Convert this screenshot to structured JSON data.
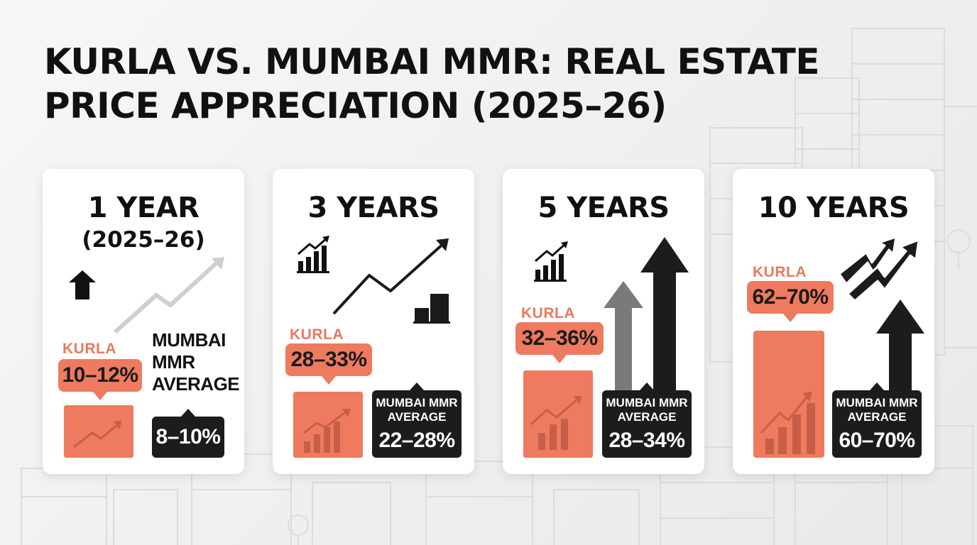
{
  "title": {
    "line1": "KURLA VS. MUMBAI MMR: REAL ESTATE",
    "line2": "PRICE APPRECIATION (2025–26)"
  },
  "cards": [
    {
      "period": "1 YEAR",
      "sub": "(2025–26)",
      "kurla_label": "KURLA",
      "kurla_value": "10–12%",
      "mmr_label": "MUMBAI MMR AVERAGE",
      "mmr_value": "8–10%"
    },
    {
      "period": "3 YEARS",
      "kurla_label": "KURLA",
      "kurla_value": "28–33%",
      "mmr_label": "MUMBAI MMR AVERAGE",
      "mmr_value": "22–28%"
    },
    {
      "period": "5 YEARS",
      "kurla_label": "KURLA",
      "kurla_value": "32–36%",
      "mmr_label": "MUMBAI MMR AVERAGE",
      "mmr_value": "28–34%"
    },
    {
      "period": "10 YEARS",
      "kurla_label": "KURLA",
      "kurla_value": "62–70%",
      "mmr_label": "MUMBAI MMR AVERAGE",
      "mmr_value": "60–70%"
    }
  ],
  "chart_data": {
    "type": "bar",
    "categories": [
      "1 YEAR",
      "3 YEARS",
      "5 YEARS",
      "10 YEARS"
    ],
    "series": [
      {
        "name": "KURLA",
        "ranges": [
          [
            10,
            12
          ],
          [
            28,
            33
          ],
          [
            32,
            36
          ],
          [
            62,
            70
          ]
        ]
      },
      {
        "name": "MUMBAI MMR AVERAGE",
        "ranges": [
          [
            8,
            10
          ],
          [
            22,
            28
          ],
          [
            28,
            34
          ],
          [
            60,
            70
          ]
        ]
      }
    ],
    "unit": "%"
  },
  "colors": {
    "kurla": "#ee7a60",
    "kurla_text": "#e67a60",
    "mmr": "#1c1c1c",
    "background": "#f2f2f2"
  },
  "icons": [
    "up-arrow-icon",
    "trend-line-icon",
    "growth-chart-icon",
    "buildings-icon",
    "zigzag-up-arrow-icon"
  ]
}
